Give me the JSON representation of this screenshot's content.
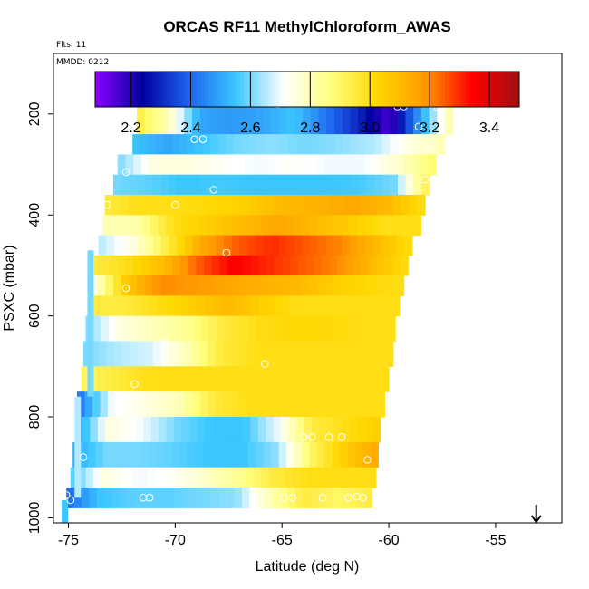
{
  "chart_data": {
    "type": "heatmap",
    "title": "ORCAS RF11 MethylChloroform_AWAS",
    "flights_label": "Flts: 11",
    "date_label": "MMDD: 0212",
    "xlabel": "Latitude (deg N)",
    "ylabel": "PSXC (mbar)",
    "xlim": [
      -75.7,
      -51.9
    ],
    "ylim": [
      1010,
      80
    ],
    "xticks": [
      -75,
      -70,
      -65,
      -60,
      -55
    ],
    "xtick_labels": [
      "-75",
      "-70",
      "-65",
      "-60",
      "-55"
    ],
    "yticks": [
      200,
      400,
      600,
      800,
      1000
    ],
    "ytick_labels": [
      "200",
      "400",
      "600",
      "800",
      "1000"
    ],
    "colorbar": {
      "range": [
        2.08,
        3.5
      ],
      "ticks": [
        2.2,
        2.4,
        2.6,
        2.8,
        3.0,
        3.2,
        3.4
      ],
      "tick_labels": [
        "2.2",
        "2.4",
        "2.6",
        "2.8",
        "3.0",
        "3.2",
        "3.4"
      ],
      "colors": [
        "#8B00FF",
        "#0000A0",
        "#1E64F0",
        "#3CC8FF",
        "#FFFFFF",
        "#FFFF80",
        "#FFD700",
        "#FF9900",
        "#FF0000",
        "#A01010"
      ]
    },
    "arrow_marker": {
      "x": -53.1,
      "direction": "down"
    },
    "bands": [
      {
        "p": 180,
        "x0": -71.8,
        "x1": -57.0,
        "values": [
          2.95,
          2.8,
          2.5,
          2.48,
          2.5,
          2.55,
          2.42,
          2.3,
          2.15,
          2.5,
          2.85
        ]
      },
      {
        "p": 240,
        "x0": -72.0,
        "x1": -57.4,
        "values": [
          2.55,
          2.5,
          2.55,
          2.6,
          2.62,
          2.6,
          2.62,
          2.65,
          2.75,
          2.8
        ]
      },
      {
        "p": 280,
        "x0": -72.7,
        "x1": -57.8,
        "values": [
          2.6,
          2.75,
          2.75,
          2.72,
          2.7,
          2.72,
          2.7,
          2.7,
          2.78,
          2.9
        ]
      },
      {
        "p": 320,
        "x0": -72.9,
        "x1": -58.1,
        "values": [
          2.6,
          2.58,
          2.55,
          2.56,
          2.55,
          2.55,
          2.55,
          2.56,
          2.6,
          2.95
        ]
      },
      {
        "p": 360,
        "x0": -73.3,
        "x1": -58.3,
        "values": [
          2.95,
          3.0,
          3.0,
          3.02,
          3.05,
          3.1,
          3.12,
          3.15,
          3.1,
          3.0
        ]
      },
      {
        "p": 400,
        "x0": -73.4,
        "x1": -58.5,
        "values": [
          2.8,
          2.82,
          3.0,
          3.05,
          3.1,
          3.15,
          3.1,
          3.05,
          3.0,
          3.0
        ]
      },
      {
        "p": 440,
        "x0": -73.6,
        "x1": -58.9,
        "values": [
          2.65,
          2.75,
          2.95,
          3.15,
          3.25,
          3.3,
          3.25,
          3.2,
          3.1,
          3.0
        ]
      },
      {
        "p": 480,
        "x0": -73.8,
        "x1": -59.1,
        "values": [
          2.95,
          3.0,
          3.1,
          3.25,
          3.35,
          3.3,
          3.25,
          3.2,
          3.1,
          3.0
        ]
      },
      {
        "p": 520,
        "x0": -74.0,
        "x1": -59.3,
        "values": [
          2.7,
          3.05,
          3.2,
          3.18,
          3.15,
          3.12,
          3.1,
          3.05,
          3.02,
          3.0
        ]
      },
      {
        "p": 560,
        "x0": -74.1,
        "x1": -59.5,
        "values": [
          2.95,
          2.95,
          3.0,
          3.05,
          3.1,
          3.05,
          3.0,
          3.0,
          3.0,
          3.0
        ]
      },
      {
        "p": 600,
        "x0": -74.2,
        "x1": -59.7,
        "values": [
          2.6,
          2.75,
          2.8,
          2.85,
          2.95,
          3.0,
          3.02,
          3.02,
          3.0,
          3.0
        ]
      },
      {
        "p": 650,
        "x0": -74.3,
        "x1": -59.8,
        "values": [
          2.6,
          2.65,
          2.68,
          2.8,
          2.95,
          3.0,
          3.0,
          3.0,
          3.0,
          3.0
        ]
      },
      {
        "p": 700,
        "x0": -74.4,
        "x1": -60.0,
        "values": [
          2.9,
          2.95,
          3.0,
          3.0,
          3.0,
          3.0,
          3.0,
          3.0,
          3.0,
          3.0
        ]
      },
      {
        "p": 750,
        "x0": -74.6,
        "x1": -60.2,
        "values": [
          2.4,
          2.7,
          2.75,
          2.8,
          2.95,
          3.0,
          3.0,
          3.0,
          3.0,
          3.0
        ]
      },
      {
        "p": 800,
        "x0": -74.7,
        "x1": -60.4,
        "values": [
          2.45,
          2.75,
          2.7,
          2.6,
          2.55,
          2.55,
          2.7,
          2.95,
          3.0,
          3.05
        ]
      },
      {
        "p": 850,
        "x0": -74.8,
        "x1": -60.5,
        "values": [
          2.5,
          2.6,
          2.6,
          2.58,
          2.55,
          2.55,
          2.62,
          2.9,
          3.05,
          3.15
        ]
      },
      {
        "p": 900,
        "x0": -74.9,
        "x1": -60.6,
        "values": [
          2.55,
          2.75,
          2.7,
          2.72,
          2.78,
          2.85,
          2.95,
          3.0,
          3.0,
          3.0
        ]
      },
      {
        "p": 940,
        "x0": -75.1,
        "x1": -60.8,
        "values": [
          2.4,
          2.55,
          2.58,
          2.58,
          2.6,
          2.62,
          2.8,
          2.95,
          2.9,
          2.95
        ]
      }
    ],
    "column_segments": [
      {
        "x": -75.1,
        "p0": 965,
        "p1": 1010,
        "value": 2.55
      },
      {
        "x": -74.5,
        "p0": 760,
        "p1": 960,
        "value": 2.65
      },
      {
        "x": -73.9,
        "p0": 470,
        "p1": 760,
        "value": 2.6
      }
    ],
    "sample_points": [
      {
        "lat": -71.4,
        "p": 180
      },
      {
        "lat": -65.2,
        "p": 180
      },
      {
        "lat": -59.6,
        "p": 185
      },
      {
        "lat": -59.3,
        "p": 185
      },
      {
        "lat": -57.7,
        "p": 188
      },
      {
        "lat": -57.5,
        "p": 186
      },
      {
        "lat": -72.3,
        "p": 240
      },
      {
        "lat": -69.1,
        "p": 250
      },
      {
        "lat": -68.7,
        "p": 250
      },
      {
        "lat": -58.6,
        "p": 225
      },
      {
        "lat": -58.1,
        "p": 265
      },
      {
        "lat": -72.3,
        "p": 315
      },
      {
        "lat": -73.4,
        "p": 320
      },
      {
        "lat": -68.2,
        "p": 350
      },
      {
        "lat": -58.3,
        "p": 330
      },
      {
        "lat": -73.2,
        "p": 380
      },
      {
        "lat": -70.0,
        "p": 380
      },
      {
        "lat": -67.6,
        "p": 475
      },
      {
        "lat": -72.3,
        "p": 545
      },
      {
        "lat": -70.5,
        "p": 650
      },
      {
        "lat": -65.8,
        "p": 695
      },
      {
        "lat": -71.9,
        "p": 735
      },
      {
        "lat": -64.0,
        "p": 840
      },
      {
        "lat": -63.6,
        "p": 840
      },
      {
        "lat": -62.8,
        "p": 840
      },
      {
        "lat": -62.2,
        "p": 840
      },
      {
        "lat": -61.0,
        "p": 885
      },
      {
        "lat": -74.3,
        "p": 880
      },
      {
        "lat": -75.1,
        "p": 955
      },
      {
        "lat": -74.9,
        "p": 965
      },
      {
        "lat": -71.5,
        "p": 960
      },
      {
        "lat": -71.2,
        "p": 960
      },
      {
        "lat": -64.9,
        "p": 960
      },
      {
        "lat": -64.5,
        "p": 960
      },
      {
        "lat": -63.1,
        "p": 960
      },
      {
        "lat": -61.9,
        "p": 960
      },
      {
        "lat": -61.5,
        "p": 958
      },
      {
        "lat": -61.2,
        "p": 960
      }
    ]
  }
}
